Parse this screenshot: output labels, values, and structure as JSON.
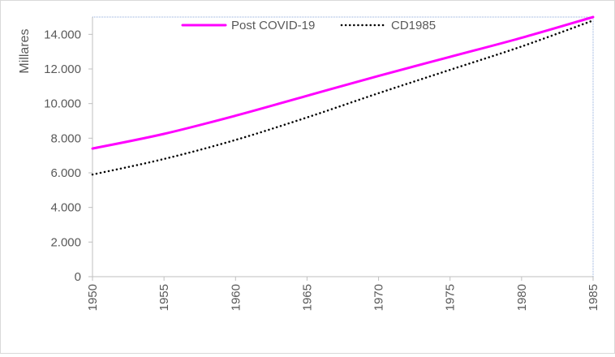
{
  "chart_data": {
    "type": "line",
    "ylabel": "Millares",
    "xlabel": "",
    "xlim": [
      1950,
      1985
    ],
    "ylim": [
      0,
      15000
    ],
    "x_ticks": [
      1950,
      1955,
      1960,
      1965,
      1970,
      1975,
      1980,
      1985
    ],
    "x_tick_labels": [
      "1950",
      "1955",
      "1960",
      "1965",
      "1970",
      "1975",
      "1980",
      "1985"
    ],
    "y_ticks": [
      0,
      2000,
      4000,
      6000,
      8000,
      10000,
      12000,
      14000
    ],
    "y_tick_labels": [
      "0",
      "2.000",
      "4.000",
      "6.000",
      "8.000",
      "10.000",
      "12.000",
      "14.000"
    ],
    "grid": false,
    "legend_position": "top-center",
    "x": [
      1950,
      1955,
      1960,
      1965,
      1970,
      1975,
      1980,
      1985
    ],
    "series": [
      {
        "name": "Post COVID-19",
        "color": "#ff00ff",
        "style": "solid",
        "values": [
          7400,
          8250,
          9300,
          10450,
          11600,
          12700,
          13800,
          15000
        ]
      },
      {
        "name": "CD1985",
        "color": "#000000",
        "style": "dotted",
        "values": [
          5900,
          6800,
          7900,
          9200,
          10600,
          11950,
          13300,
          14800
        ]
      }
    ]
  }
}
